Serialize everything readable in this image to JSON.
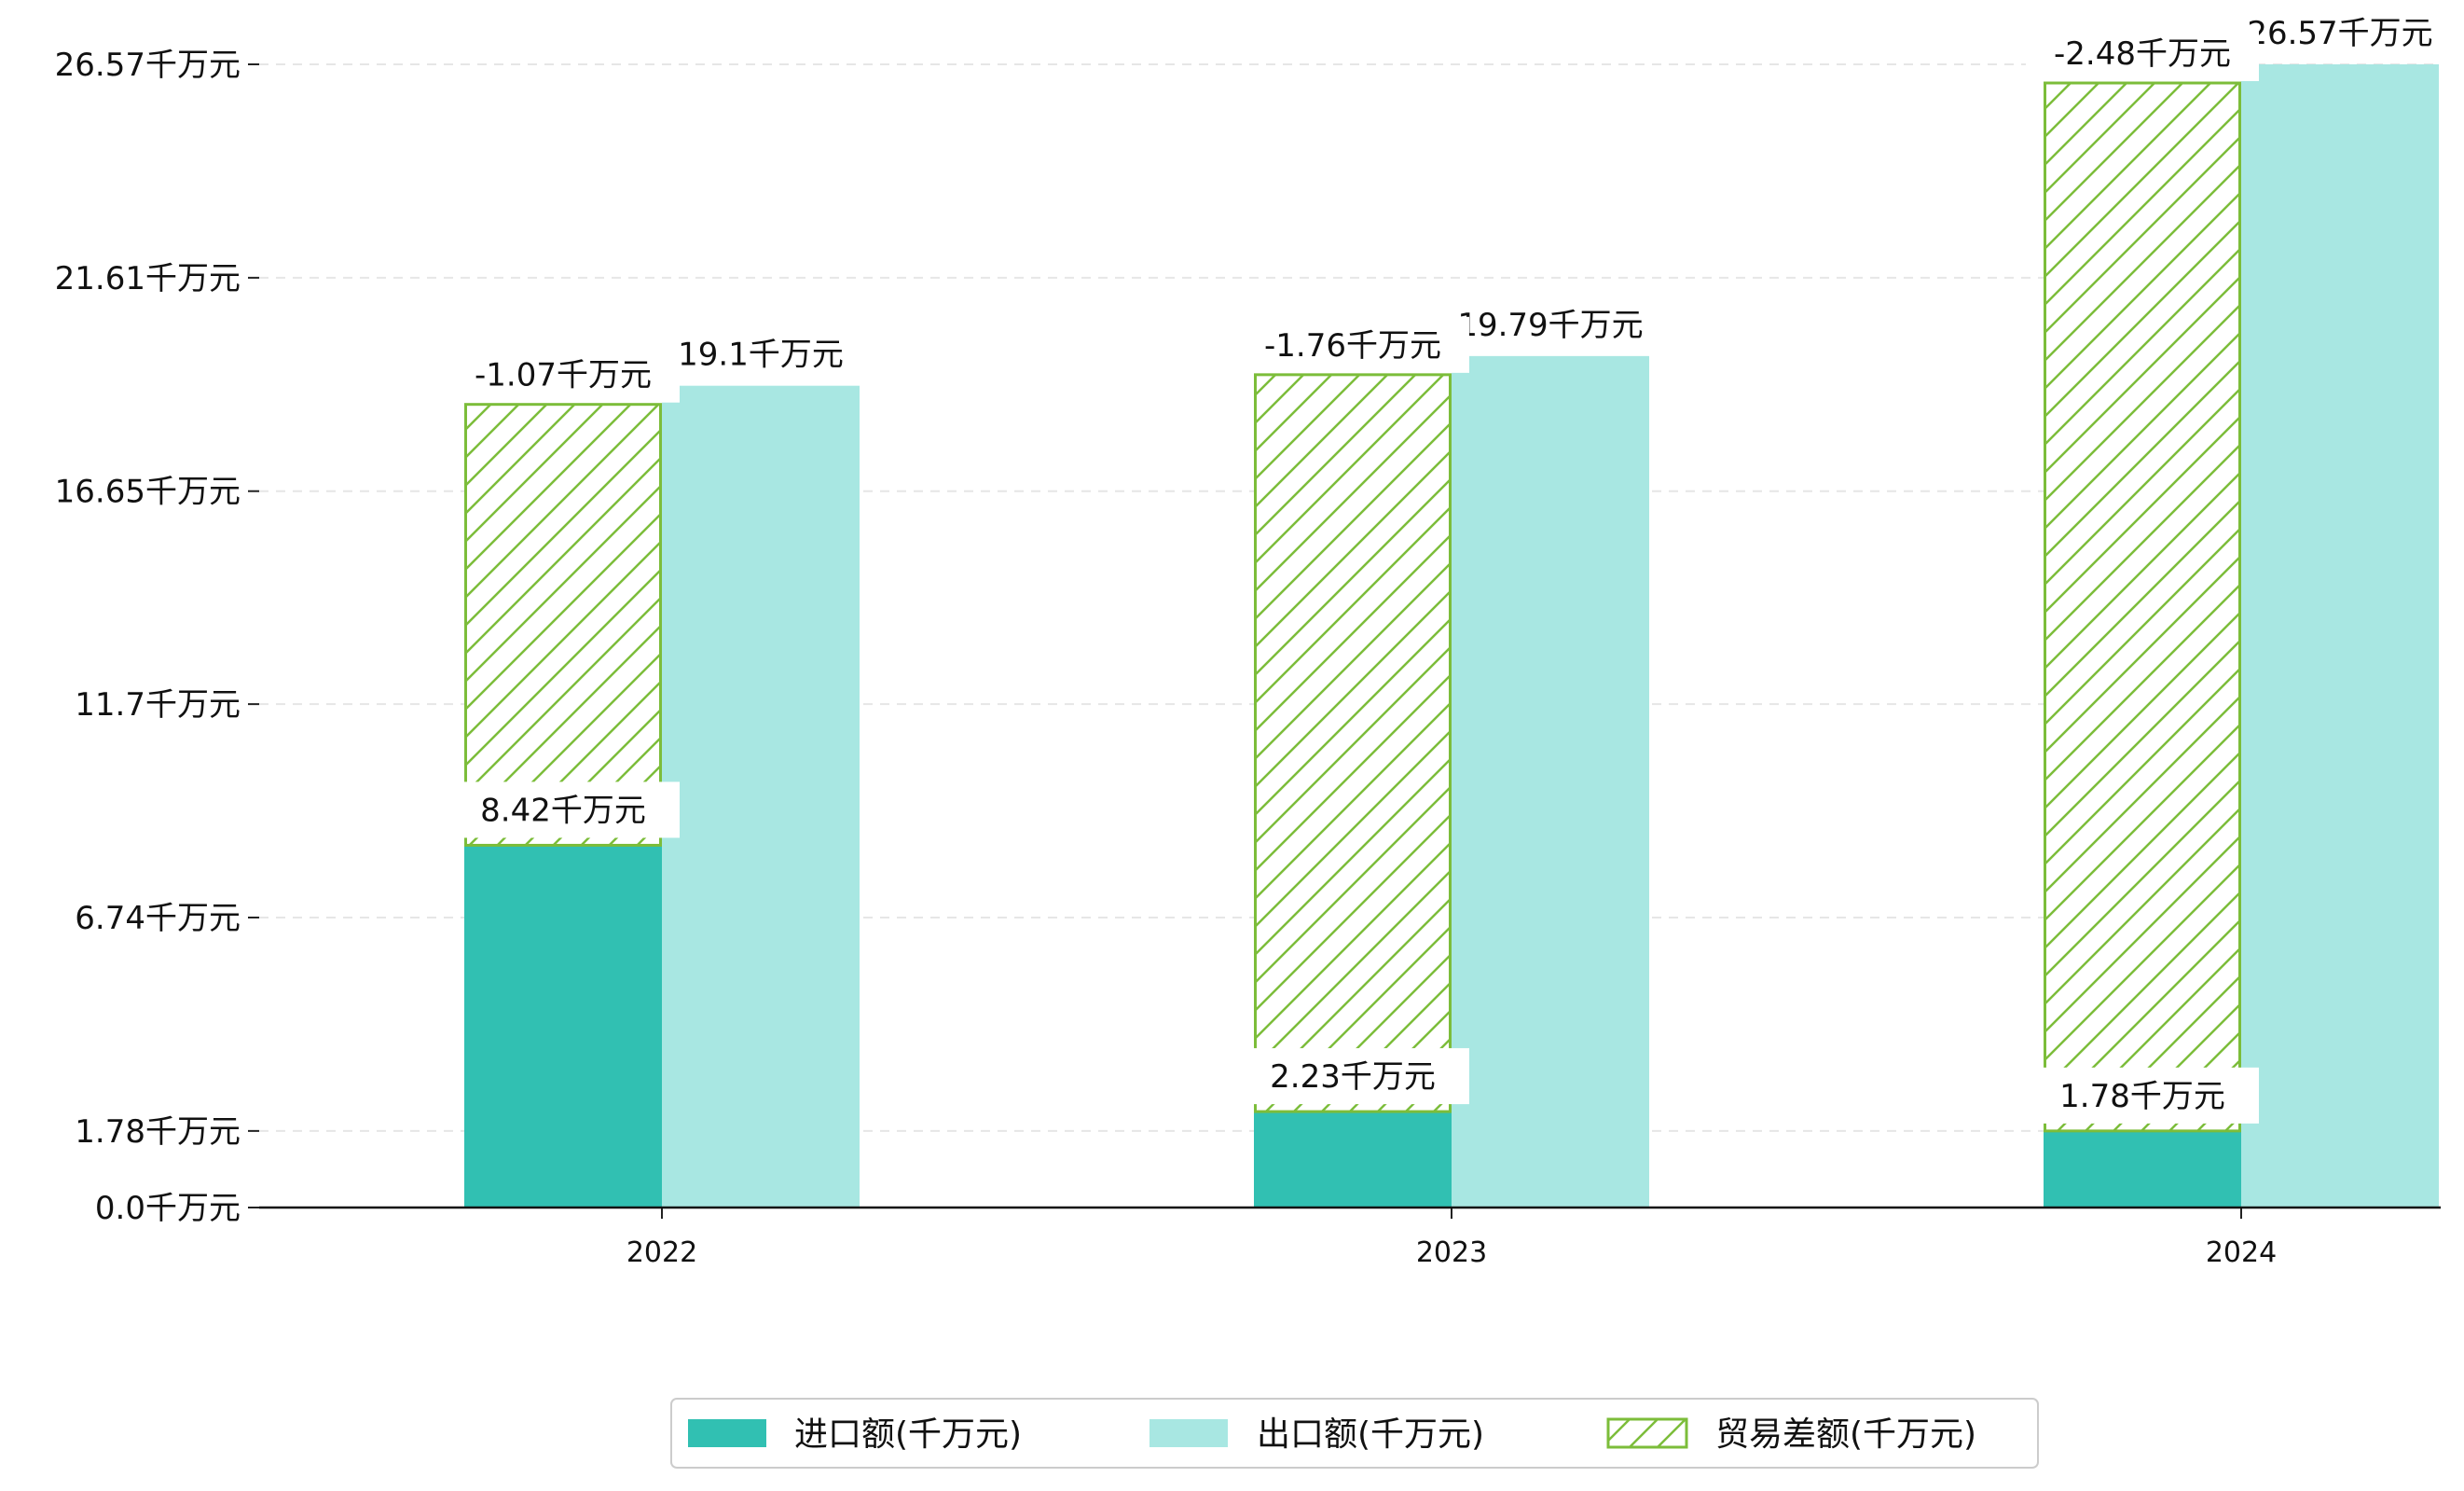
{
  "chart_data": {
    "type": "bar",
    "title": "",
    "xlabel": "",
    "ylabel": "",
    "categories": [
      "2022",
      "2023",
      "2024"
    ],
    "series": [
      {
        "name": "进口额(千万元)",
        "values": [
          8.42,
          2.23,
          1.78
        ],
        "color": "#31c0b2",
        "style": "solid"
      },
      {
        "name": "出口额(千万元)",
        "values": [
          19.1,
          19.79,
          26.57
        ],
        "color": "#a8e7e2",
        "style": "solid"
      },
      {
        "name": "贸易差额(千万元)",
        "values": [
          -1.07,
          -1.76,
          -2.48
        ],
        "color": "#7cbd3a",
        "style": "hatched"
      }
    ],
    "data_labels": {
      "import": [
        "8.42千万元",
        "2.23千万元",
        "1.78千万元"
      ],
      "export": [
        "19.1千万元",
        "19.79千万元",
        "26.57千万元"
      ],
      "balance": [
        "-1.07千万元",
        "-1.76千万元",
        "-2.48千万元"
      ]
    },
    "y_ticks": [
      0.0,
      1.78,
      6.74,
      11.7,
      16.65,
      21.61,
      26.57
    ],
    "y_tick_labels": [
      "0.0千万元",
      "1.78千万元",
      "6.74千万元",
      "11.7千万元",
      "16.65千万元",
      "21.61千万元",
      "26.57千万元"
    ],
    "ylim": [
      0,
      27.2
    ],
    "grid": true,
    "legend_position": "bottom-center"
  }
}
